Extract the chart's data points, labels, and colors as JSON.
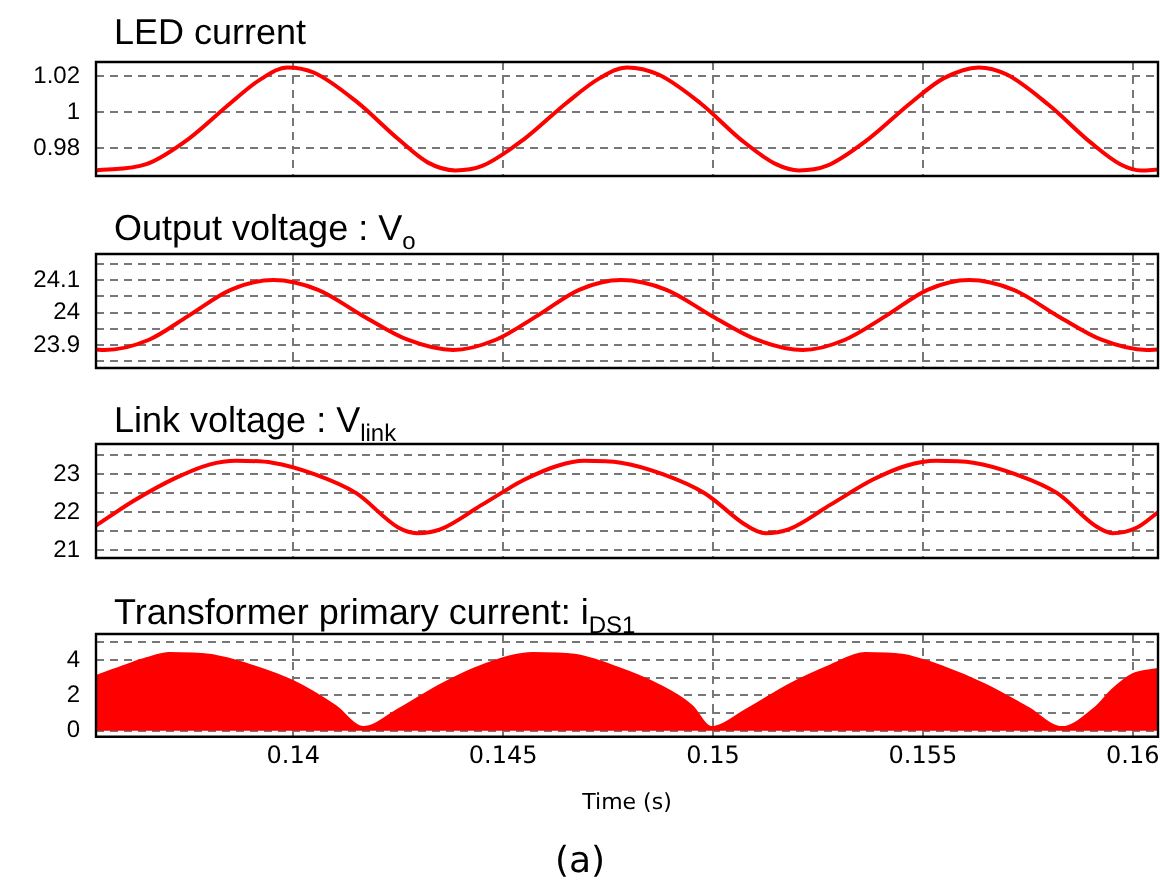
{
  "chart_data": [
    {
      "type": "line",
      "title": "LED current",
      "xlim": [
        0.1353,
        0.1606
      ],
      "xticks": [
        0.14,
        0.145,
        0.15,
        0.155,
        0.16
      ],
      "ylim": [
        0.9644,
        1.028
      ],
      "yticks": [
        0.98,
        1,
        1.02
      ],
      "grid": true,
      "tick_labels": "y",
      "legend": false,
      "marker": "none",
      "line_style": "solid",
      "series": [
        {
          "color": "#ff0000",
          "x": [
            0.1353,
            0.1365,
            0.1375,
            0.1385,
            0.1392,
            0.13986,
            0.1405,
            0.1415,
            0.1425,
            0.1432,
            0.14386,
            0.1445,
            0.1455,
            0.1465,
            0.1473,
            0.14795,
            0.1487,
            0.1497,
            0.1507,
            0.1515,
            0.15205,
            0.1527,
            0.1537,
            0.1547,
            0.1555,
            0.15633,
            0.157,
            0.158,
            0.159,
            0.1597,
            0.1602,
            0.1606
          ],
          "values": [
            0.9675,
            0.971,
            0.985,
            1.005,
            1.018,
            1.025,
            1.022,
            1.006,
            0.985,
            0.972,
            0.9675,
            0.97,
            0.985,
            1.005,
            1.019,
            1.025,
            1.021,
            1.005,
            0.984,
            0.971,
            0.9675,
            0.97,
            0.985,
            1.005,
            1.019,
            1.025,
            1.021,
            1.004,
            0.983,
            0.971,
            0.9675,
            0.968
          ]
        }
      ]
    },
    {
      "type": "line",
      "title": "Output voltage : V$_{o}$",
      "xlim": [
        0.1353,
        0.1606
      ],
      "xticks": [
        0.14,
        0.145,
        0.15,
        0.155,
        0.16
      ],
      "ylim": [
        23.83,
        24.18
      ],
      "yticks": [
        {
          "value": 23.85,
          "label": null
        },
        23.9,
        {
          "value": 23.95,
          "label": null
        },
        24,
        {
          "value": 24.05,
          "label": null
        },
        24.1,
        {
          "value": 24.15,
          "label": null
        }
      ],
      "grid": true,
      "tick_labels": "y",
      "legend": false,
      "marker": "none",
      "line_style": "solid",
      "series": [
        {
          "color": "#ff0000",
          "x": [
            0.1353,
            0.1355,
            0.13655,
            0.1375,
            0.13851,
            0.13952,
            0.14059,
            0.14166,
            0.14274,
            0.14381,
            0.14481,
            0.14581,
            0.14681,
            0.14781,
            0.14889,
            0.14997,
            0.15106,
            0.15214,
            0.15313,
            0.15412,
            0.15511,
            0.1561,
            0.15716,
            0.15821,
            0.15927,
            0.16033,
            0.1606
          ],
          "values": [
            23.887,
            23.885,
            23.916,
            23.99,
            24.07,
            24.1,
            24.07,
            23.99,
            23.916,
            23.885,
            23.916,
            23.99,
            24.07,
            24.1,
            24.07,
            23.99,
            23.916,
            23.885,
            23.916,
            23.99,
            24.07,
            24.1,
            24.07,
            23.99,
            23.916,
            23.885,
            23.887
          ]
        }
      ]
    },
    {
      "type": "line",
      "title": "Link voltage : V$_{link}$",
      "xlim": [
        0.1353,
        0.1606
      ],
      "xticks": [
        0.14,
        0.145,
        0.15,
        0.155,
        0.16
      ],
      "ylim": [
        20.8,
        23.79
      ],
      "yticks": [
        21,
        {
          "value": 21.5,
          "label": null
        },
        22,
        {
          "value": 22.5,
          "label": null
        },
        23,
        {
          "value": 23.5,
          "label": null
        }
      ],
      "grid": true,
      "tick_labels": "y",
      "legend": false,
      "marker": "none",
      "line_style": "solid",
      "series": [
        {
          "color": "#ff0000",
          "x": [
            0.1353,
            0.1362,
            0.1372,
            0.138,
            0.13864,
            0.1395,
            0.1405,
            0.1415,
            0.1425,
            0.14295,
            0.1435,
            0.1445,
            0.1455,
            0.1463,
            0.14693,
            0.1478,
            0.1488,
            0.1498,
            0.1508,
            0.15124,
            0.1518,
            0.1528,
            0.1538,
            0.1546,
            0.15531,
            0.1562,
            0.1572,
            0.1582,
            0.1591,
            0.15952,
            0.1601,
            0.1606
          ],
          "values": [
            21.65,
            22.3,
            22.9,
            23.25,
            23.35,
            23.3,
            23.0,
            22.5,
            21.6,
            21.45,
            21.55,
            22.2,
            22.85,
            23.22,
            23.35,
            23.3,
            23.0,
            22.5,
            21.65,
            21.45,
            21.55,
            22.2,
            22.85,
            23.22,
            23.35,
            23.3,
            23.0,
            22.5,
            21.65,
            21.45,
            21.6,
            22.0
          ]
        }
      ]
    },
    {
      "type": "area",
      "title": "Transformer primary current: i$_{DS1}$",
      "xlabel": "Time (s)",
      "annotations": [
        "(a)"
      ],
      "xlim": [
        0.1353,
        0.1606
      ],
      "xticks": [
        0.14,
        0.145,
        0.15,
        0.155,
        0.16
      ],
      "ylim": [
        -0.35,
        5.48
      ],
      "yticks": [
        0,
        {
          "value": 1,
          "label": null
        },
        2,
        {
          "value": 3,
          "label": null
        },
        4,
        {
          "value": 5,
          "label": null
        }
      ],
      "grid": true,
      "legend": false,
      "marker": "none",
      "series": [
        {
          "color": "#ff0000",
          "x": [
            0.1353,
            0.136,
            0.1365,
            0.13705,
            0.138,
            0.139,
            0.14,
            0.141,
            0.14167,
            0.1425,
            0.1435,
            0.1445,
            0.14571,
            0.1467,
            0.1477,
            0.1487,
            0.1495,
            0.14995,
            0.1508,
            0.1518,
            0.1528,
            0.15362,
            0.1545,
            0.1555,
            0.1565,
            0.1575,
            0.15831,
            0.1591,
            0.1595,
            0.16,
            0.1606
          ],
          "values": [
            3.1,
            3.7,
            4.1,
            4.4,
            4.3,
            3.7,
            2.8,
            1.4,
            0.2,
            1.2,
            2.6,
            3.7,
            4.4,
            4.3,
            3.6,
            2.6,
            1.4,
            0.2,
            1.2,
            2.6,
            3.7,
            4.4,
            4.3,
            3.6,
            2.6,
            1.3,
            0.2,
            1.3,
            2.3,
            3.2,
            3.5
          ]
        }
      ]
    }
  ]
}
